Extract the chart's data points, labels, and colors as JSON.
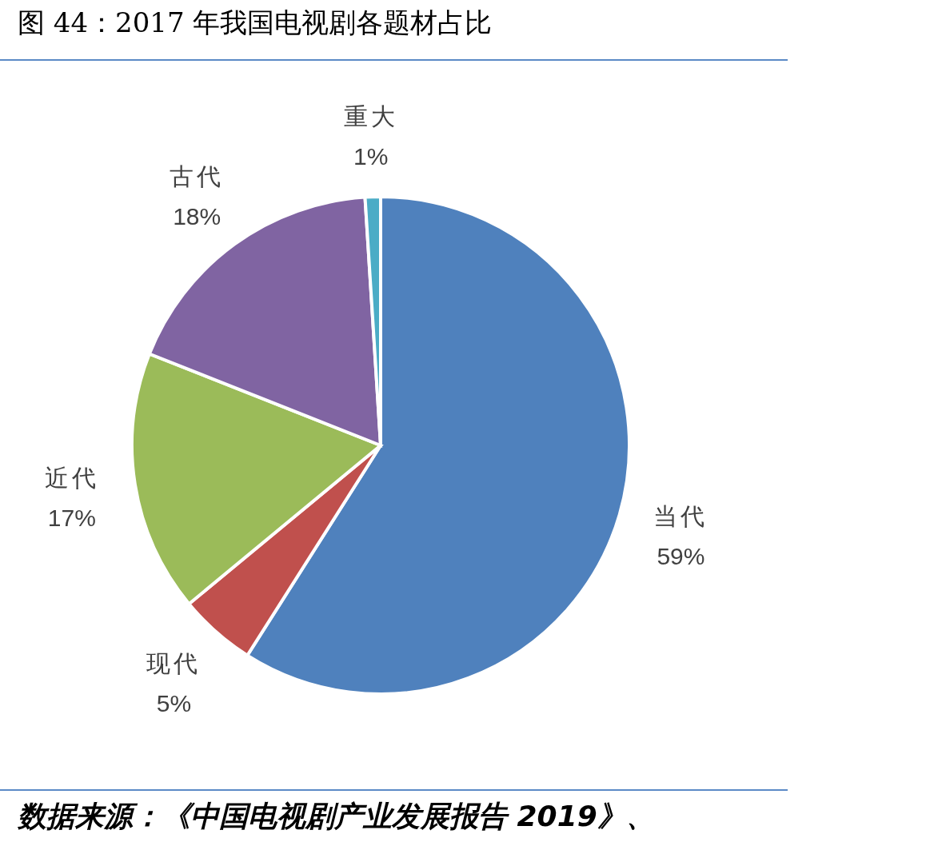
{
  "chart_data": {
    "type": "pie",
    "title": "图 44：2017 年我国电视剧各题材占比",
    "categories": [
      "当代",
      "现代",
      "近代",
      "古代",
      "重大"
    ],
    "values": [
      59,
      5,
      17,
      18,
      1
    ],
    "colors": [
      "#4f81bd",
      "#c0504d",
      "#9bbb59",
      "#8064a2",
      "#4bacc6"
    ],
    "value_labels": [
      "59%",
      "5%",
      "17%",
      "18%",
      "1%"
    ],
    "annotations": [
      "数据来源：《中国电视剧产业发展报告 2019》、"
    ]
  }
}
